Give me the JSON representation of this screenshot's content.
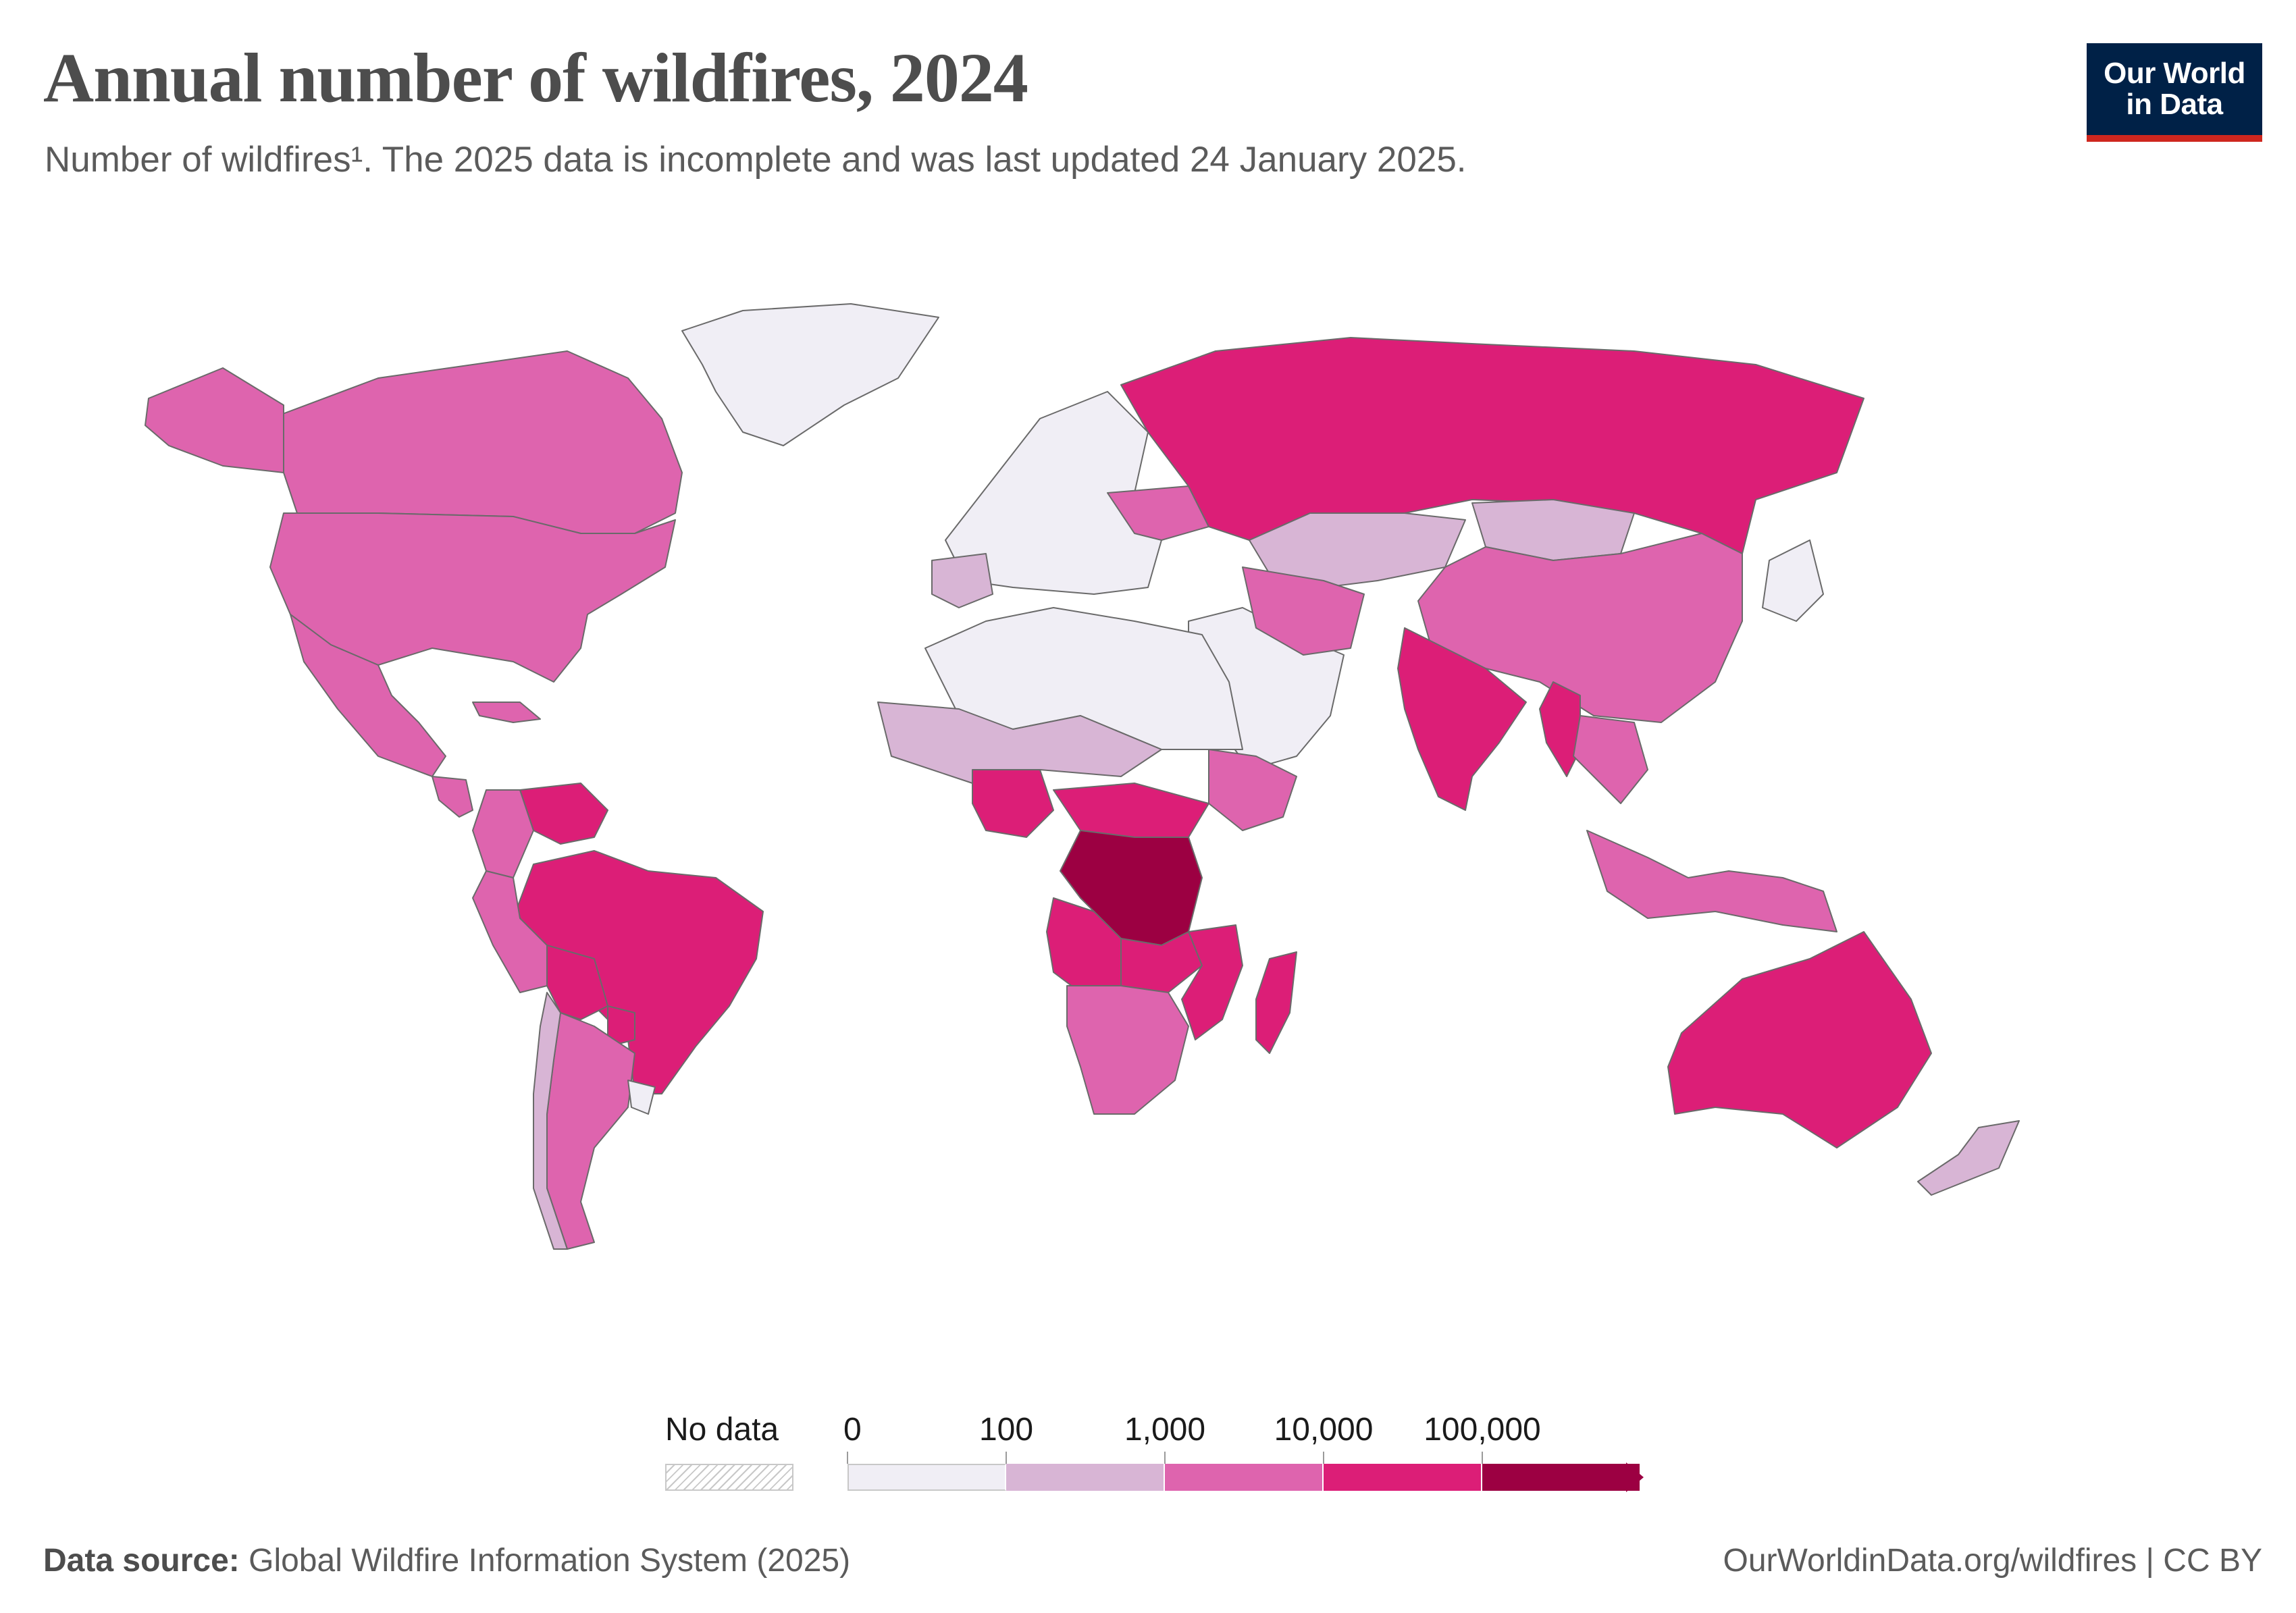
{
  "header": {
    "title": "Annual number of wildfires, 2024",
    "subtitle": "Number of wildfires¹. The 2025 data is incomplete and was last updated 24 January 2025."
  },
  "logo": {
    "line1": "Our World",
    "line2": "in Data"
  },
  "colors": {
    "bin0": "#f0eef5",
    "bin1": "#d8b5d5",
    "bin2": "#de64ae",
    "bin3": "#dc1e77",
    "bin4": "#9c0042",
    "border": "#6a6a6a",
    "nodata": "#cfcfcf"
  },
  "legend": {
    "no_data_label": "No data",
    "tick_labels": [
      "0",
      "100",
      "1,000",
      "10,000",
      "100,000"
    ]
  },
  "map_regions": [
    {
      "name": "Canada",
      "bin": 2
    },
    {
      "name": "United States",
      "bin": 2
    },
    {
      "name": "Alaska",
      "bin": 2
    },
    {
      "name": "Greenland",
      "bin": 0
    },
    {
      "name": "Mexico",
      "bin": 2
    },
    {
      "name": "Central America",
      "bin": 2
    },
    {
      "name": "Cuba",
      "bin": 2
    },
    {
      "name": "Venezuela",
      "bin": 3
    },
    {
      "name": "Colombia",
      "bin": 2
    },
    {
      "name": "Brazil",
      "bin": 3
    },
    {
      "name": "Bolivia",
      "bin": 3
    },
    {
      "name": "Peru",
      "bin": 2
    },
    {
      "name": "Paraguay",
      "bin": 3
    },
    {
      "name": "Argentina",
      "bin": 2
    },
    {
      "name": "Chile",
      "bin": 1
    },
    {
      "name": "Uruguay",
      "bin": 0
    },
    {
      "name": "Europe West",
      "bin": 0
    },
    {
      "name": "Spain",
      "bin": 1
    },
    {
      "name": "Ukraine",
      "bin": 2
    },
    {
      "name": "Russia",
      "bin": 3
    },
    {
      "name": "Kazakhstan",
      "bin": 1
    },
    {
      "name": "Mongolia",
      "bin": 1
    },
    {
      "name": "China",
      "bin": 2
    },
    {
      "name": "India",
      "bin": 3
    },
    {
      "name": "Myanmar",
      "bin": 3
    },
    {
      "name": "Southeast Asia",
      "bin": 2
    },
    {
      "name": "Indonesia",
      "bin": 2
    },
    {
      "name": "Australia",
      "bin": 3
    },
    {
      "name": "New Zealand",
      "bin": 1
    },
    {
      "name": "Japan",
      "bin": 0
    },
    {
      "name": "Middle East",
      "bin": 0
    },
    {
      "name": "Iran",
      "bin": 2
    },
    {
      "name": "North Africa",
      "bin": 0
    },
    {
      "name": "Sahel",
      "bin": 1
    },
    {
      "name": "Nigeria",
      "bin": 3
    },
    {
      "name": "Central African Rep.",
      "bin": 3
    },
    {
      "name": "DR Congo",
      "bin": 4
    },
    {
      "name": "Angola",
      "bin": 3
    },
    {
      "name": "Zambia",
      "bin": 3
    },
    {
      "name": "Mozambique",
      "bin": 3
    },
    {
      "name": "Ethiopia",
      "bin": 2
    },
    {
      "name": "Southern Africa",
      "bin": 2
    },
    {
      "name": "Madagascar",
      "bin": 3
    }
  ],
  "footer": {
    "source_label": "Data source:",
    "source_text": " Global Wildfire Information System (2025)",
    "url": "OurWorldinData.org/wildfires | CC BY"
  }
}
